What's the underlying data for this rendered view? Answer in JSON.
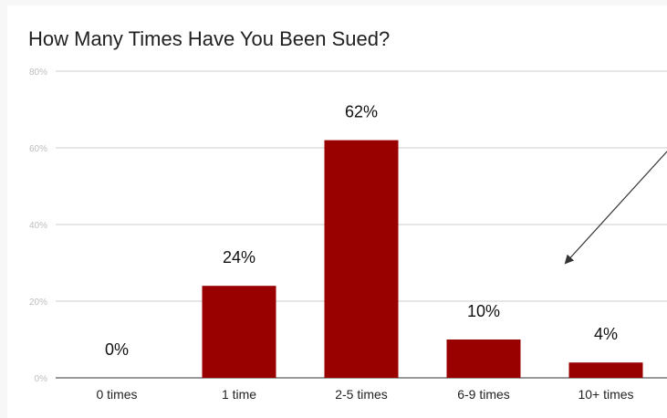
{
  "chart_data": {
    "type": "bar",
    "title": "How Many Times Have You Been Sued?",
    "categories": [
      "0 times",
      "1 time",
      "2-5 times",
      "6-9 times",
      "10+ times"
    ],
    "values": [
      0,
      24,
      62,
      10,
      4
    ],
    "data_labels": [
      "0%",
      "24%",
      "62%",
      "10%",
      "4%"
    ],
    "ylim": [
      0,
      80
    ],
    "yticks": [
      0,
      20,
      40,
      60,
      80
    ],
    "ytick_labels": [
      "0%",
      "20%",
      "40%",
      "60%",
      "80%"
    ],
    "grid": true,
    "bar_color": "#990000",
    "gridline_color": "#cccccc",
    "annotation": {
      "type": "arrow",
      "color": "#333333"
    }
  }
}
